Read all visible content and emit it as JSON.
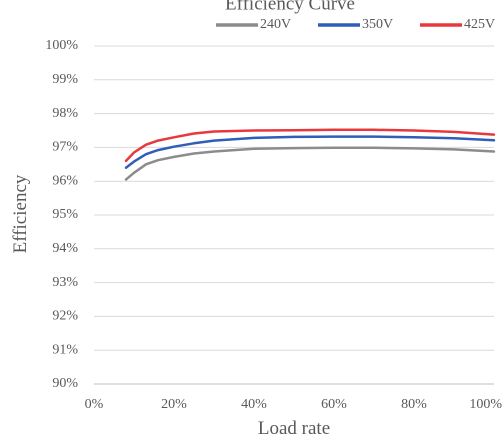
{
  "chart_data": {
    "type": "line",
    "title": "Efficiency Curve",
    "xlabel": "Load rate",
    "ylabel": "Efficiency",
    "xlim": [
      0,
      100
    ],
    "ylim": [
      90,
      100
    ],
    "x_ticks": [
      "0%",
      "20%",
      "40%",
      "60%",
      "80%",
      "100%"
    ],
    "y_ticks": [
      "90%",
      "91%",
      "92%",
      "93%",
      "94%",
      "95%",
      "96%",
      "97%",
      "98%",
      "99%",
      "100%"
    ],
    "grid": "horizontal",
    "legend_position": "top-right",
    "x": [
      8,
      10,
      13,
      16,
      20,
      25,
      30,
      40,
      50,
      60,
      70,
      80,
      90,
      100
    ],
    "series": [
      {
        "name": "240V",
        "color": "#8c8c8c",
        "values": [
          96.05,
          96.25,
          96.5,
          96.62,
          96.72,
          96.82,
          96.88,
          96.96,
          96.98,
          96.99,
          96.99,
          96.97,
          96.94,
          96.88
        ]
      },
      {
        "name": "350V",
        "color": "#2f5eb8",
        "values": [
          96.4,
          96.58,
          96.8,
          96.92,
          97.02,
          97.12,
          97.2,
          97.28,
          97.31,
          97.32,
          97.32,
          97.3,
          97.27,
          97.21
        ]
      },
      {
        "name": "425V",
        "color": "#e8383d",
        "values": [
          96.6,
          96.85,
          97.08,
          97.2,
          97.3,
          97.41,
          97.47,
          97.5,
          97.51,
          97.52,
          97.52,
          97.5,
          97.46,
          97.38
        ]
      }
    ]
  }
}
